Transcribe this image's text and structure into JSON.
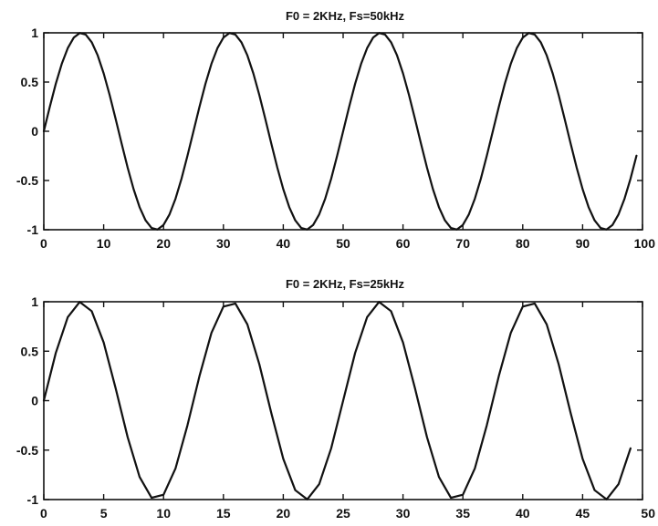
{
  "chart_data": [
    {
      "type": "line",
      "title": "F0 = 2KHz, Fs=50kHz",
      "xlabel": "",
      "ylabel": "",
      "xlim": [
        0,
        100
      ],
      "ylim": [
        -1,
        1
      ],
      "xticks": [
        "0",
        "10",
        "20",
        "30",
        "40",
        "50",
        "60",
        "70",
        "80",
        "90",
        "100"
      ],
      "yticks": [
        "1",
        "0.5",
        "0",
        "-0.5",
        "-1"
      ],
      "grid": false,
      "x": [
        0,
        1,
        2,
        3,
        4,
        5,
        6,
        7,
        8,
        9,
        10,
        11,
        12,
        13,
        14,
        15,
        16,
        17,
        18,
        19,
        20,
        21,
        22,
        23,
        24,
        25,
        26,
        27,
        28,
        29,
        30,
        31,
        32,
        33,
        34,
        35,
        36,
        37,
        38,
        39,
        40,
        41,
        42,
        43,
        44,
        45,
        46,
        47,
        48,
        49,
        50,
        51,
        52,
        53,
        54,
        55,
        56,
        57,
        58,
        59,
        60,
        61,
        62,
        63,
        64,
        65,
        66,
        67,
        68,
        69,
        70,
        71,
        72,
        73,
        74,
        75,
        76,
        77,
        78,
        79,
        80,
        81,
        82,
        83,
        84,
        85,
        86,
        87,
        88,
        89,
        90,
        91,
        92,
        93,
        94,
        95,
        96,
        97,
        98,
        99
      ],
      "series": [
        {
          "values": [
            0,
            0.248,
            0.482,
            0.685,
            0.844,
            0.951,
            0.998,
            0.982,
            0.905,
            0.771,
            0.588,
            0.368,
            0.125,
            -0.125,
            -0.368,
            -0.588,
            -0.771,
            -0.905,
            -0.982,
            -0.998,
            -0.951,
            -0.844,
            -0.685,
            -0.482,
            -0.248,
            0,
            0.248,
            0.482,
            0.685,
            0.844,
            0.951,
            0.998,
            0.982,
            0.905,
            0.771,
            0.588,
            0.368,
            0.125,
            -0.125,
            -0.368,
            -0.588,
            -0.771,
            -0.905,
            -0.982,
            -0.998,
            -0.951,
            -0.844,
            -0.685,
            -0.482,
            -0.248,
            0,
            0.248,
            0.482,
            0.685,
            0.844,
            0.951,
            0.998,
            0.982,
            0.905,
            0.771,
            0.588,
            0.368,
            0.125,
            -0.125,
            -0.368,
            -0.588,
            -0.771,
            -0.905,
            -0.982,
            -0.998,
            -0.951,
            -0.844,
            -0.685,
            -0.482,
            -0.248,
            0,
            0.248,
            0.482,
            0.685,
            0.844,
            0.951,
            0.998,
            0.982,
            0.905,
            0.771,
            0.588,
            0.368,
            0.125,
            -0.125,
            -0.368,
            -0.588,
            -0.771,
            -0.905,
            -0.982,
            -0.998,
            -0.951,
            -0.844,
            -0.685,
            -0.482,
            -0.248
          ],
          "color": "#111111"
        }
      ]
    },
    {
      "type": "line",
      "title": "F0 = 2KHz, Fs=25kHz",
      "xlabel": "",
      "ylabel": "",
      "xlim": [
        0,
        50
      ],
      "ylim": [
        -1,
        1
      ],
      "xticks": [
        "0",
        "5",
        "10",
        "15",
        "20",
        "25",
        "30",
        "35",
        "40",
        "45",
        "50"
      ],
      "yticks": [
        "1",
        "0.5",
        "0",
        "-0.5",
        "-1"
      ],
      "grid": false,
      "x": [
        0,
        1,
        2,
        3,
        4,
        5,
        6,
        7,
        8,
        9,
        10,
        11,
        12,
        13,
        14,
        15,
        16,
        17,
        18,
        19,
        20,
        21,
        22,
        23,
        24,
        25,
        26,
        27,
        28,
        29,
        30,
        31,
        32,
        33,
        34,
        35,
        36,
        37,
        38,
        39,
        40,
        41,
        42,
        43,
        44,
        45,
        46,
        47,
        48,
        49
      ],
      "series": [
        {
          "values": [
            0,
            0.482,
            0.844,
            0.998,
            0.905,
            0.588,
            0.125,
            -0.368,
            -0.771,
            -0.982,
            -0.951,
            -0.685,
            -0.248,
            0.248,
            0.685,
            0.951,
            0.982,
            0.771,
            0.368,
            -0.125,
            -0.588,
            -0.905,
            -0.998,
            -0.844,
            -0.482,
            0,
            0.482,
            0.844,
            0.998,
            0.905,
            0.588,
            0.125,
            -0.368,
            -0.771,
            -0.982,
            -0.951,
            -0.685,
            -0.248,
            0.248,
            0.685,
            0.951,
            0.982,
            0.771,
            0.368,
            -0.125,
            -0.588,
            -0.905,
            -0.998,
            -0.844,
            -0.482
          ],
          "color": "#111111"
        }
      ]
    }
  ]
}
